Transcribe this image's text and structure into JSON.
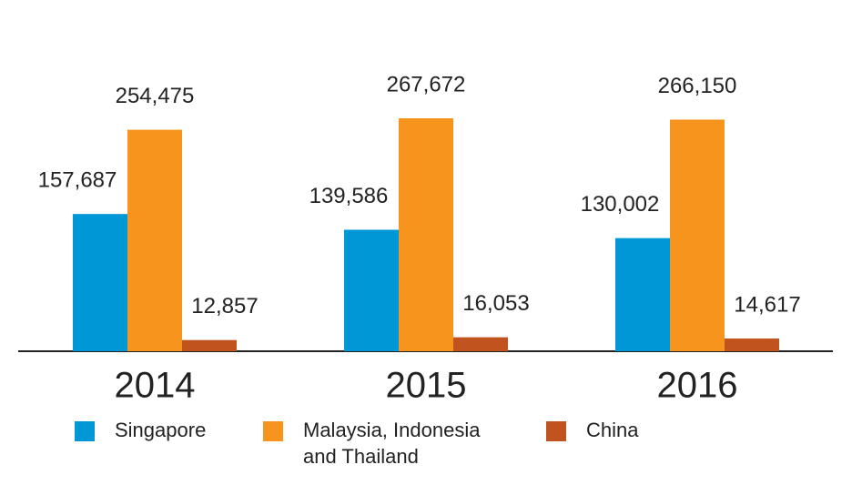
{
  "chart_data": {
    "type": "bar",
    "categories": [
      "2014",
      "2015",
      "2016"
    ],
    "series": [
      {
        "name": "Singapore",
        "color": "#0097d7",
        "values": [
          157687,
          139586,
          130002
        ],
        "value_labels": [
          "157,687",
          "139,586",
          "130,002"
        ]
      },
      {
        "name": "Malaysia, Indonesia and Thailand",
        "color": "#f7941d",
        "values": [
          254475,
          267672,
          266150
        ],
        "value_labels": [
          "254,475",
          "267,672",
          "266,150"
        ]
      },
      {
        "name": "China",
        "color": "#c1541e",
        "values": [
          12857,
          16053,
          14617
        ],
        "value_labels": [
          "12,857",
          "16,053",
          "14,617"
        ]
      }
    ]
  }
}
